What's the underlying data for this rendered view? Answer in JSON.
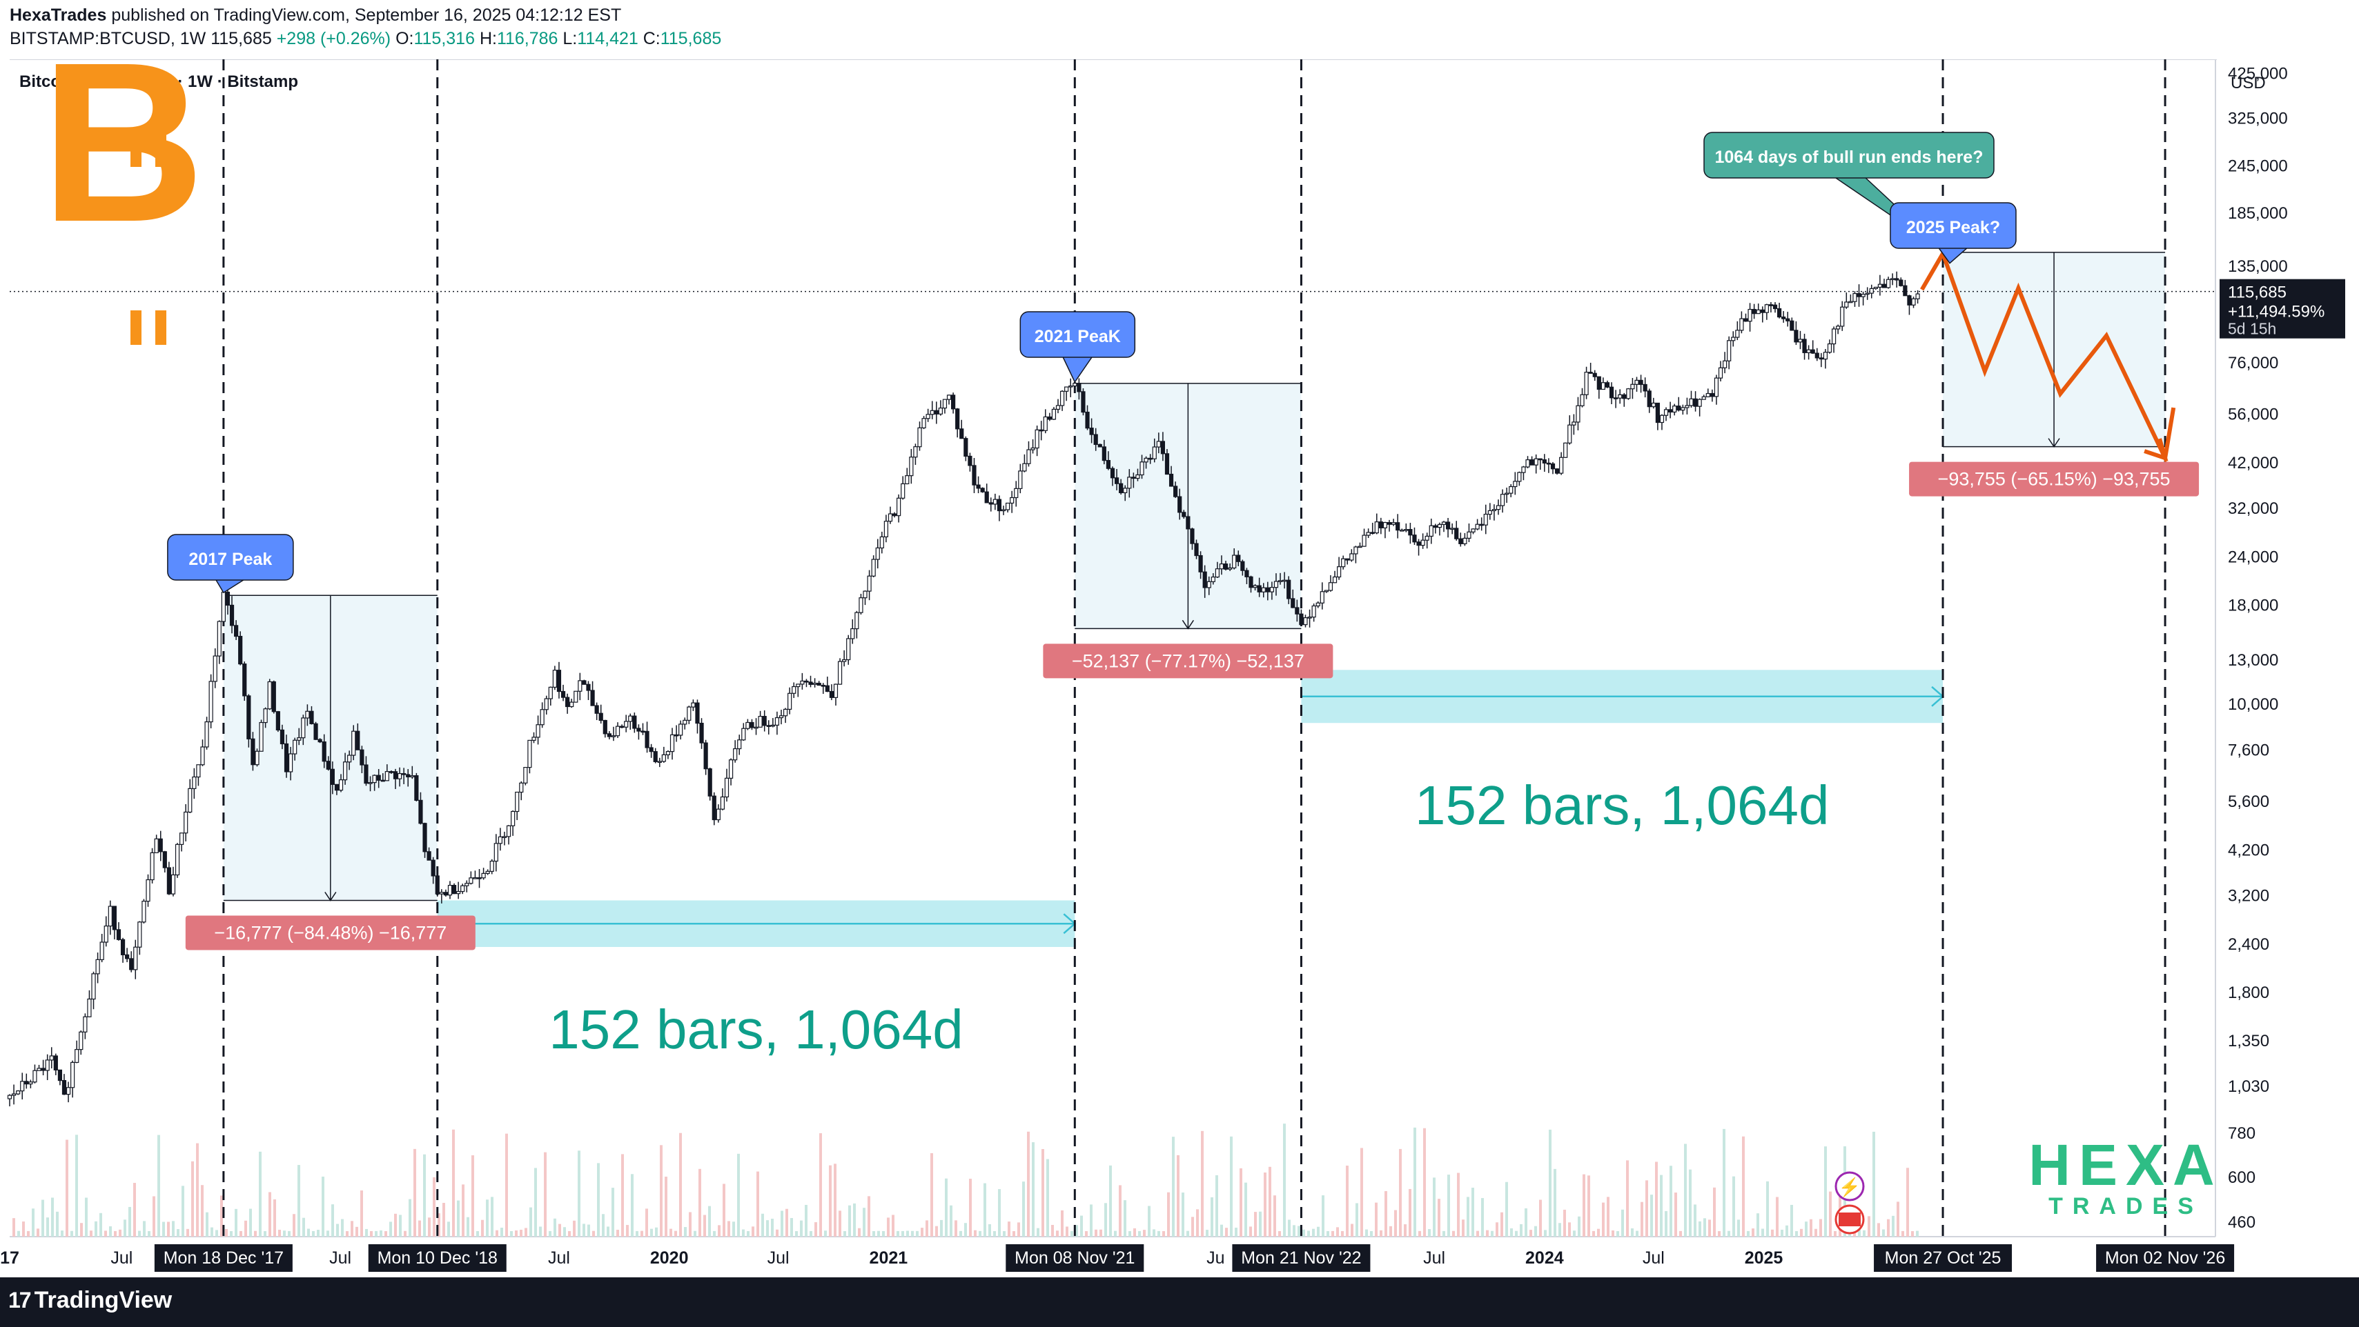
{
  "header": {
    "publisher": "HexaTrades",
    "published_text": "published on TradingView.com, September 16, 2025 04:12:12 EST",
    "symbol": "BITSTAMP:BTCUSD, 1W",
    "last": "115,685",
    "change": "+298 (+0.26%)",
    "o_label": "O:",
    "o_val": "115,316",
    "h_label": "H:",
    "h_val": "116,786",
    "l_label": "L:",
    "l_val": "114,421",
    "c_label": "C:",
    "c_val": "115,685"
  },
  "footer": {
    "brand": "TradingView"
  },
  "chart_data": {
    "type": "candlestick",
    "title": "Bitcoin / U.S. Dollar · 1W · Bitstamp",
    "currency": "USD",
    "y_scale": "log",
    "ylim": [
      420,
      460000
    ],
    "y_ticks": [
      "425,000",
      "325,000",
      "245,000",
      "185,000",
      "135,000",
      "76,000",
      "56,000",
      "42,000",
      "32,000",
      "24,000",
      "18,000",
      "13,000",
      "10,000",
      "7,600",
      "5,600",
      "4,200",
      "3,200",
      "2,400",
      "1,800",
      "1,350",
      "1,030",
      "780",
      "600",
      "460"
    ],
    "y_tick_values": [
      425000,
      325000,
      245000,
      185000,
      135000,
      76000,
      56000,
      42000,
      32000,
      24000,
      18000,
      13000,
      10000,
      7600,
      5600,
      4200,
      3200,
      2400,
      1800,
      1350,
      1030,
      780,
      600,
      460
    ],
    "xlim": [
      "2016-12-26",
      "2027-01-25"
    ],
    "x_ticks": [
      {
        "label": "17",
        "date": "2016-12-26",
        "bold": true
      },
      {
        "label": "Jul",
        "date": "2017-07-01"
      },
      {
        "label": "Jul",
        "date": "2018-07-01"
      },
      {
        "label": "Jul",
        "date": "2019-07-01"
      },
      {
        "label": "2020",
        "date": "2020-01-01",
        "bold": true
      },
      {
        "label": "Jul",
        "date": "2020-07-01"
      },
      {
        "label": "2021",
        "date": "2021-01-01",
        "bold": true
      },
      {
        "label": "Ju",
        "date": "2022-07-01"
      },
      {
        "label": "Jul",
        "date": "2023-07-01"
      },
      {
        "label": "2024",
        "date": "2024-01-01",
        "bold": true
      },
      {
        "label": "Jul",
        "date": "2024-07-01"
      },
      {
        "label": "2025",
        "date": "2025-01-01",
        "bold": true
      }
    ],
    "x_markers": [
      {
        "label": "Mon 18 Dec '17",
        "date": "2017-12-18"
      },
      {
        "label": "Mon 10 Dec '18",
        "date": "2018-12-10"
      },
      {
        "label": "Mon 08 Nov '21",
        "date": "2021-11-08"
      },
      {
        "label": "Mon 21 Nov '22",
        "date": "2022-11-21"
      },
      {
        "label": "Mon 27 Oct '25",
        "date": "2025-10-27"
      },
      {
        "label": "Mon 02 Nov '26",
        "date": "2026-11-02"
      }
    ],
    "price_path": [
      [
        "2016-12-26",
        960
      ],
      [
        "2017-03-06",
        1200
      ],
      [
        "2017-03-27",
        950
      ],
      [
        "2017-05-22",
        2200
      ],
      [
        "2017-06-12",
        2900
      ],
      [
        "2017-07-17",
        2000
      ],
      [
        "2017-08-28",
        4600
      ],
      [
        "2017-09-18",
        3300
      ],
      [
        "2017-10-23",
        6000
      ],
      [
        "2017-11-13",
        7500
      ],
      [
        "2017-12-04",
        13500
      ],
      [
        "2017-12-18",
        19000
      ],
      [
        "2018-01-08",
        15000
      ],
      [
        "2018-02-05",
        6900
      ],
      [
        "2018-03-05",
        11000
      ],
      [
        "2018-04-02",
        6800
      ],
      [
        "2018-05-07",
        9500
      ],
      [
        "2018-06-25",
        5900
      ],
      [
        "2018-07-23",
        8200
      ],
      [
        "2018-08-13",
        6200
      ],
      [
        "2018-09-24",
        6600
      ],
      [
        "2018-10-29",
        6400
      ],
      [
        "2018-11-19",
        4200
      ],
      [
        "2018-12-10",
        3200
      ],
      [
        "2019-01-28",
        3450
      ],
      [
        "2019-03-04",
        3800
      ],
      [
        "2019-04-15",
        5200
      ],
      [
        "2019-05-13",
        7800
      ],
      [
        "2019-06-24",
        12000
      ],
      [
        "2019-07-15",
        9500
      ],
      [
        "2019-08-05",
        11500
      ],
      [
        "2019-09-23",
        8200
      ],
      [
        "2019-10-28",
        9200
      ],
      [
        "2019-12-16",
        7000
      ],
      [
        "2020-02-10",
        10200
      ],
      [
        "2020-03-16",
        5000
      ],
      [
        "2020-05-04",
        8800
      ],
      [
        "2020-06-29",
        9100
      ],
      [
        "2020-08-10",
        11800
      ],
      [
        "2020-09-28",
        10700
      ],
      [
        "2020-11-02",
        15500
      ],
      [
        "2020-12-28",
        29000
      ],
      [
        "2021-01-18",
        33000
      ],
      [
        "2021-02-22",
        52000
      ],
      [
        "2021-04-12",
        62000
      ],
      [
        "2021-05-24",
        37000
      ],
      [
        "2021-06-21",
        33000
      ],
      [
        "2021-07-19",
        32000
      ],
      [
        "2021-09-06",
        50000
      ],
      [
        "2021-10-18",
        62000
      ],
      [
        "2021-11-08",
        67000
      ],
      [
        "2021-12-06",
        49000
      ],
      [
        "2022-01-24",
        36000
      ],
      [
        "2022-03-28",
        46000
      ],
      [
        "2022-05-09",
        30000
      ],
      [
        "2022-06-13",
        20500
      ],
      [
        "2022-08-08",
        24000
      ],
      [
        "2022-09-05",
        19500
      ],
      [
        "2022-10-24",
        20500
      ],
      [
        "2022-11-21",
        16000
      ],
      [
        "2023-01-09",
        21000
      ],
      [
        "2023-03-20",
        28000
      ],
      [
        "2023-04-17",
        30000
      ],
      [
        "2023-06-12",
        26000
      ],
      [
        "2023-07-10",
        30000
      ],
      [
        "2023-08-21",
        26000
      ],
      [
        "2023-10-23",
        34000
      ],
      [
        "2023-12-04",
        42000
      ],
      [
        "2024-01-22",
        40000
      ],
      [
        "2024-03-11",
        70000
      ],
      [
        "2024-05-06",
        61000
      ],
      [
        "2024-06-03",
        69000
      ],
      [
        "2024-07-08",
        55000
      ],
      [
        "2024-08-05",
        57000
      ],
      [
        "2024-10-07",
        62000
      ],
      [
        "2024-11-11",
        90000
      ],
      [
        "2024-12-16",
        104000
      ],
      [
        "2025-01-20",
        105000
      ],
      [
        "2025-03-10",
        82000
      ],
      [
        "2025-04-07",
        78000
      ],
      [
        "2025-05-19",
        108000
      ],
      [
        "2025-07-14",
        119000
      ],
      [
        "2025-08-11",
        122000
      ],
      [
        "2025-09-01",
        110000
      ],
      [
        "2025-09-15",
        115685
      ]
    ],
    "current_price": {
      "value": 115685,
      "label": "115,685",
      "change": "+11,494.59%",
      "countdown": "5d 15h"
    },
    "projection": [
      [
        "2025-09-22",
        117000
      ],
      [
        "2025-10-27",
        145000
      ],
      [
        "2026-01-05",
        72000
      ],
      [
        "2026-03-02",
        118000
      ],
      [
        "2026-05-11",
        63000
      ],
      [
        "2026-07-27",
        89000
      ],
      [
        "2026-11-02",
        43000
      ],
      [
        "2026-11-16",
        58000
      ]
    ],
    "measure_boxes": [
      {
        "start": "2017-12-18",
        "end": "2018-12-10",
        "high": 19000,
        "low": 3100,
        "label": "−16,777 (−84.48%) −16,777"
      },
      {
        "start": "2021-11-08",
        "end": "2022-11-21",
        "high": 67000,
        "low": 15600,
        "label": "−52,137 (−77.17%) −52,137"
      },
      {
        "start": "2025-10-27",
        "end": "2026-11-02",
        "high": 146000,
        "low": 46000,
        "label": "−93,755 (−65.15%) −93,755"
      }
    ],
    "range_boxes": [
      {
        "start": "2018-12-10",
        "end": "2021-11-08",
        "low": 2350,
        "high": 3100,
        "label": "152 bars, 1,064d"
      },
      {
        "start": "2022-11-21",
        "end": "2025-10-27",
        "low": 8900,
        "high": 12200,
        "label": "152 bars, 1,064d"
      }
    ],
    "callouts": [
      {
        "text": "2017 Peak",
        "date": "2017-12-18",
        "price": 19000,
        "color": "#5b8cff"
      },
      {
        "text": "2021 PeaK",
        "date": "2021-11-08",
        "price": 67000,
        "color": "#5b8cff"
      },
      {
        "text": "2025 Peak?",
        "date": "2025-10-27",
        "price": 145000,
        "color": "#5b8cff"
      },
      {
        "text": "1064 days of bull run ends here?",
        "date": "2025-10-27",
        "price": 145000,
        "color": "#4cae9e"
      }
    ],
    "colors": {
      "up": "#131722",
      "down": "#131722",
      "projection": "#e8590c",
      "range": "#7fd8e4",
      "measure": "#d6eaf2",
      "label_red": "#e0777f",
      "bitcoin": "#f7931a",
      "hexa": "#2ebd85"
    },
    "logos": {
      "hexa_top": "HEXA",
      "hexa_bottom": "TRADES"
    }
  }
}
